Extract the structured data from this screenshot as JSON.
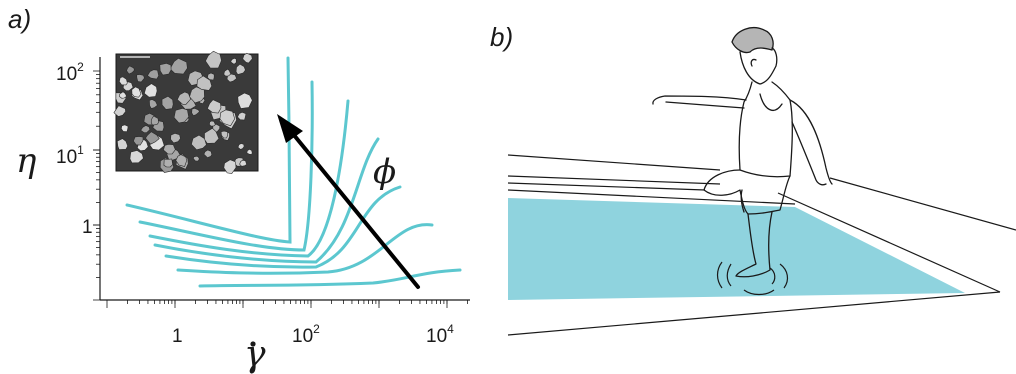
{
  "panel_a_label": "a)",
  "panel_b_label": "b)",
  "y_axis": {
    "label": "η",
    "ticks": [
      {
        "base": "1",
        "exp": ""
      },
      {
        "base": "10",
        "exp": "1"
      },
      {
        "base": "10",
        "exp": "2"
      }
    ]
  },
  "x_axis": {
    "label": "γ",
    "ticks": [
      {
        "base": "1",
        "exp": ""
      },
      {
        "base": "10",
        "exp": "2"
      },
      {
        "base": "10",
        "exp": "4"
      }
    ]
  },
  "arrow_label": "ϕ",
  "colors": {
    "curve": "#5cc7cf",
    "water": "#8fd3de",
    "ink": "#1a1a1a"
  }
}
